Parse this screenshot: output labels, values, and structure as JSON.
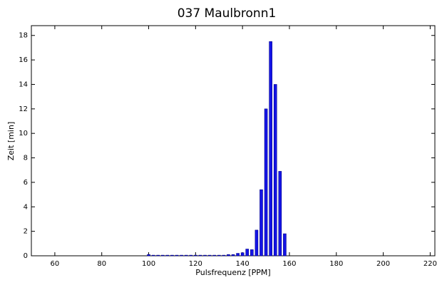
{
  "chart_data": {
    "type": "bar",
    "title": "037 Maulbronn1",
    "x_label": "Pulsfrequenz [PPM]",
    "y_label": "Zeit [min]",
    "x": [
      100,
      102,
      104,
      106,
      108,
      110,
      112,
      114,
      116,
      118,
      120,
      122,
      124,
      126,
      128,
      130,
      132,
      134,
      136,
      138,
      140,
      142,
      144,
      146,
      148,
      150,
      152,
      154,
      156,
      158
    ],
    "values": [
      0.1,
      0.05,
      0.05,
      0.05,
      0.05,
      0.05,
      0.05,
      0.05,
      0.05,
      0.05,
      0.05,
      0.05,
      0.05,
      0.05,
      0.05,
      0.05,
      0.05,
      0.1,
      0.1,
      0.2,
      0.25,
      0.55,
      0.5,
      2.1,
      5.4,
      12,
      17.5,
      14,
      6.9,
      1.8
    ],
    "color": "#1414e6",
    "xlim": [
      50,
      222
    ],
    "xticks": [
      60,
      80,
      100,
      120,
      140,
      160,
      180,
      200,
      220
    ],
    "ylim": [
      0,
      18.8
    ],
    "yticks": [
      0,
      2,
      4,
      6,
      8,
      10,
      12,
      14,
      16,
      18
    ],
    "grid": false
  }
}
